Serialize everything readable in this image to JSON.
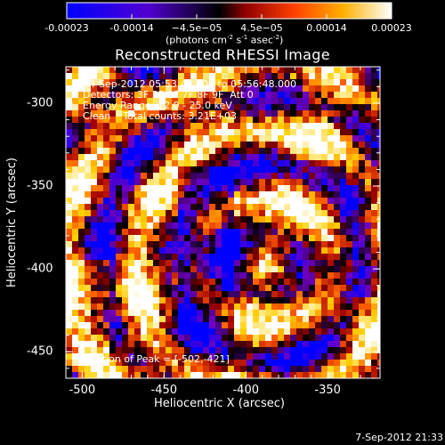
{
  "colorbar": {
    "tick_labels": [
      "-0.00023",
      "-0.00014",
      "−4.5e−05",
      "4.5e−05",
      "0.00014",
      "0.00023"
    ],
    "range": [
      -0.00023,
      0.00023
    ],
    "unit_main": "(photons cm",
    "unit_e1": "-2",
    "unit_s": " s",
    "unit_e2": "-1",
    "unit_as": " asec",
    "unit_e3": "-2",
    "unit_close": ")"
  },
  "chart_data": {
    "type": "heatmap",
    "title": "Reconstructed RHESSI Image",
    "xlabel": "Heliocentric X (arcsec)",
    "ylabel": "Heliocentric Y (arcsec)",
    "xlim": [
      -510,
      -318
    ],
    "ylim": [
      -466,
      -278
    ],
    "x_ticks": [
      -500,
      -450,
      -400,
      -350
    ],
    "y_ticks": [
      -300,
      -350,
      -400,
      -450
    ],
    "x_tick_labels": [
      "-500",
      "-450",
      "-400",
      "-350"
    ],
    "y_tick_labels": [
      "-300",
      "-350",
      "-400",
      "-450"
    ],
    "colormap": [
      "#0000ff",
      "#7000c0",
      "#000000",
      "#a00000",
      "#ff6000",
      "#ffd000",
      "#ffffff"
    ],
    "annotations": {
      "time_range": "4-Sep-2012 05:53:44.000 to 05:56:48.000",
      "detectors": "Detectors: 3F 5F 6F 7F 8F 9F  Att 0",
      "energy": "Energy Range: 12.0 - 25.0 keV",
      "method": "Clean    Total counts: 3.21E+03",
      "peak": "Position of Peak = [-502,-421]"
    },
    "peak_position": [
      -502,
      -421
    ]
  },
  "footer": {
    "date": "7-Sep-2012 21:33"
  }
}
